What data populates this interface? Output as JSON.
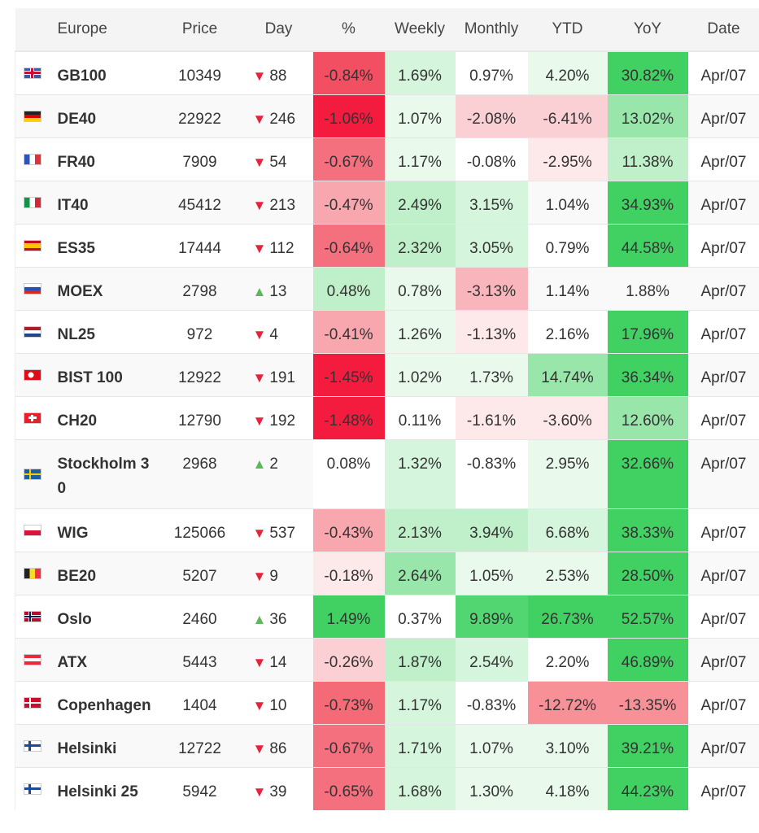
{
  "header": {
    "region": "Europe",
    "price": "Price",
    "day": "Day",
    "pct": "%",
    "weekly": "Weekly",
    "monthly": "Monthly",
    "ytd": "YTD",
    "yoy": "YoY",
    "date": "Date"
  },
  "colors": {
    "down": "#e5243b",
    "up": "#5cb85c"
  },
  "rows": [
    {
      "flag": "gb",
      "name": "GB100",
      "price": "10349",
      "dir": "down",
      "day": "88",
      "pct": "-0.84%",
      "weekly": "1.69%",
      "monthly": "0.97%",
      "ytd": "4.20%",
      "yoy": "30.82%",
      "date": "Apr/07",
      "bg": [
        "#f24f62",
        "#d5f5dc",
        null,
        "#e9f9ec",
        "#41d162"
      ]
    },
    {
      "flag": "de",
      "name": "DE40",
      "price": "22922",
      "dir": "down",
      "day": "246",
      "pct": "-1.06%",
      "weekly": "1.07%",
      "monthly": "-2.08%",
      "ytd": "-6.41%",
      "yoy": "13.02%",
      "date": "Apr/07",
      "bg": [
        "#f31c3f",
        "#e9f9ec",
        "#fbd0d4",
        "#fbd0d4",
        "#98e6a9"
      ]
    },
    {
      "flag": "fr",
      "name": "FR40",
      "price": "7909",
      "dir": "down",
      "day": "54",
      "pct": "-0.67%",
      "weekly": "1.17%",
      "monthly": "-0.08%",
      "ytd": "-2.95%",
      "yoy": "11.38%",
      "date": "Apr/07",
      "bg": [
        "#f5707e",
        "#e9f9ec",
        null,
        "#fde8ea",
        "#bff0ca"
      ]
    },
    {
      "flag": "it",
      "name": "IT40",
      "price": "45412",
      "dir": "down",
      "day": "213",
      "pct": "-0.47%",
      "weekly": "2.49%",
      "monthly": "3.15%",
      "ytd": "1.04%",
      "yoy": "34.93%",
      "date": "Apr/07",
      "bg": [
        "#f8a7ae",
        "#bff0ca",
        "#d5f5dc",
        null,
        "#41d162"
      ]
    },
    {
      "flag": "es",
      "name": "ES35",
      "price": "17444",
      "dir": "down",
      "day": "112",
      "pct": "-0.64%",
      "weekly": "2.32%",
      "monthly": "3.05%",
      "ytd": "0.79%",
      "yoy": "44.58%",
      "date": "Apr/07",
      "bg": [
        "#f5707e",
        "#bff0ca",
        "#d5f5dc",
        null,
        "#41d162"
      ]
    },
    {
      "flag": "ru",
      "name": "MOEX",
      "price": "2798",
      "dir": "up",
      "day": "13",
      "pct": "0.48%",
      "weekly": "0.78%",
      "monthly": "-3.13%",
      "ytd": "1.14%",
      "yoy": "1.88%",
      "date": "Apr/07",
      "bg": [
        "#bff0ca",
        "#e9f9ec",
        "#f8b5bb",
        null,
        null
      ]
    },
    {
      "flag": "nl",
      "name": "NL25",
      "price": "972",
      "dir": "down",
      "day": "4",
      "pct": "-0.41%",
      "weekly": "1.26%",
      "monthly": "-1.13%",
      "ytd": "2.16%",
      "yoy": "17.96%",
      "date": "Apr/07",
      "bg": [
        "#f8a7ae",
        "#e9f9ec",
        "#fde8ea",
        null,
        "#41d162"
      ]
    },
    {
      "flag": "tr",
      "name": "BIST 100",
      "price": "12922",
      "dir": "down",
      "day": "191",
      "pct": "-1.45%",
      "weekly": "1.02%",
      "monthly": "1.73%",
      "ytd": "14.74%",
      "yoy": "36.34%",
      "date": "Apr/07",
      "bg": [
        "#f31c3f",
        "#e9f9ec",
        "#e9f9ec",
        "#98e6a9",
        "#41d162"
      ]
    },
    {
      "flag": "ch",
      "name": "CH20",
      "price": "12790",
      "dir": "down",
      "day": "192",
      "pct": "-1.48%",
      "weekly": "0.11%",
      "monthly": "-1.61%",
      "ytd": "-3.60%",
      "yoy": "12.60%",
      "date": "Apr/07",
      "bg": [
        "#f31c3f",
        null,
        "#fde8ea",
        "#fde8ea",
        "#98e6a9"
      ]
    },
    {
      "flag": "se",
      "name": "Stockholm 30",
      "price": "2968",
      "dir": "up",
      "day": "2",
      "pct": "0.08%",
      "weekly": "1.32%",
      "monthly": "-0.83%",
      "ytd": "2.95%",
      "yoy": "32.66%",
      "date": "Apr/07",
      "bg": [
        "#ffffff",
        "#d5f5dc",
        "#ffffff",
        "#e9f9ec",
        "#41d162"
      ]
    },
    {
      "flag": "pl",
      "name": "WIG",
      "price": "125066",
      "dir": "down",
      "day": "537",
      "pct": "-0.43%",
      "weekly": "2.13%",
      "monthly": "3.94%",
      "ytd": "6.68%",
      "yoy": "38.33%",
      "date": "Apr/07",
      "bg": [
        "#f8a7ae",
        "#bff0ca",
        "#bff0ca",
        "#d5f5dc",
        "#41d162"
      ]
    },
    {
      "flag": "be",
      "name": "BE20",
      "price": "5207",
      "dir": "down",
      "day": "9",
      "pct": "-0.18%",
      "weekly": "2.64%",
      "monthly": "1.05%",
      "ytd": "2.53%",
      "yoy": "28.50%",
      "date": "Apr/07",
      "bg": [
        "#fde8ea",
        "#98e6a9",
        "#e9f9ec",
        "#e9f9ec",
        "#41d162"
      ]
    },
    {
      "flag": "no",
      "name": "Oslo",
      "price": "2460",
      "dir": "up",
      "day": "36",
      "pct": "1.49%",
      "weekly": "0.37%",
      "monthly": "9.89%",
      "ytd": "26.73%",
      "yoy": "52.57%",
      "date": "Apr/07",
      "bg": [
        "#41d162",
        "#ffffff",
        "#52d672",
        "#41d162",
        "#41d162"
      ]
    },
    {
      "flag": "at",
      "name": "ATX",
      "price": "5443",
      "dir": "down",
      "day": "14",
      "pct": "-0.26%",
      "weekly": "1.87%",
      "monthly": "2.54%",
      "ytd": "2.20%",
      "yoy": "46.89%",
      "date": "Apr/07",
      "bg": [
        "#fbd0d4",
        "#bff0ca",
        "#d5f5dc",
        "#ffffff",
        "#41d162"
      ]
    },
    {
      "flag": "dk",
      "name": "Copenhagen",
      "price": "1404",
      "dir": "down",
      "day": "10",
      "pct": "-0.73%",
      "weekly": "1.17%",
      "monthly": "-0.83%",
      "ytd": "-12.72%",
      "yoy": "-13.35%",
      "date": "Apr/07",
      "bg": [
        "#f46a76",
        "#d5f5dc",
        "#ffffff",
        "#f89098",
        "#f89098"
      ]
    },
    {
      "flag": "fi",
      "name": "Helsinki",
      "price": "12722",
      "dir": "down",
      "day": "86",
      "pct": "-0.67%",
      "weekly": "1.71%",
      "monthly": "1.07%",
      "ytd": "3.10%",
      "yoy": "39.21%",
      "date": "Apr/07",
      "bg": [
        "#f5707e",
        "#d5f5dc",
        "#e9f9ec",
        "#e9f9ec",
        "#41d162"
      ]
    },
    {
      "flag": "fi",
      "name": "Helsinki 25",
      "price": "5942",
      "dir": "down",
      "day": "39",
      "pct": "-0.65%",
      "weekly": "1.68%",
      "monthly": "1.30%",
      "ytd": "4.18%",
      "yoy": "44.23%",
      "date": "Apr/07",
      "bg": [
        "#f5707e",
        "#d5f5dc",
        "#e9f9ec",
        "#e9f9ec",
        "#41d162"
      ]
    }
  ]
}
